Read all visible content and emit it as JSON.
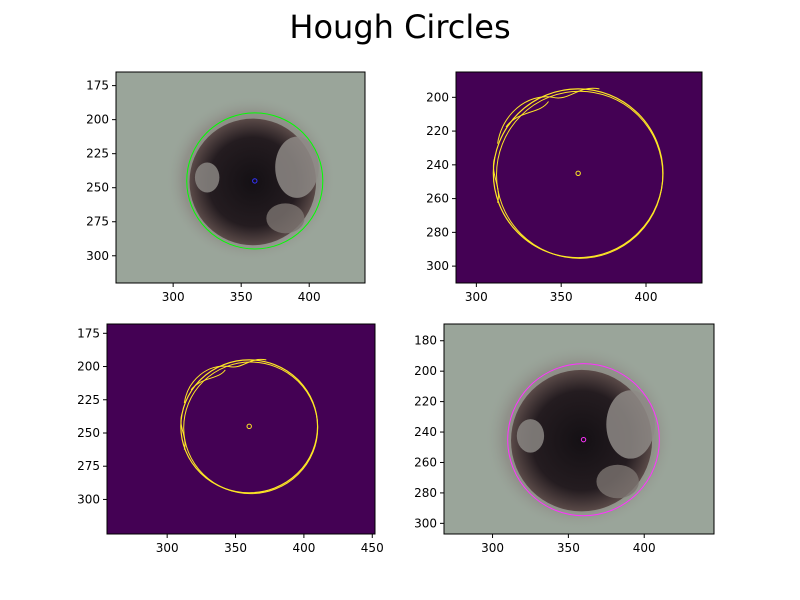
{
  "figure": {
    "title": "Hough Circles",
    "colors": {
      "background": "#ffffff",
      "edge_bg": "#440154",
      "edge_fg": "#fde725",
      "wall": "#9aa59a",
      "hole_dark": "#141014",
      "hole_rim": "#5a4a48",
      "circle_green": "#00ff00",
      "circle_magenta": "#ff33ff",
      "center_blue": "#3333ff"
    }
  },
  "chart_data": [
    {
      "type": "image",
      "panel": "top-left",
      "content": "photo",
      "title": "",
      "xlabel": "",
      "ylabel": "",
      "xlim": [
        258,
        441
      ],
      "ylim": [
        320,
        165
      ],
      "xticks": [
        300,
        350,
        400
      ],
      "yticks": [
        175,
        200,
        225,
        250,
        275,
        300
      ],
      "circle": {
        "cx": 360,
        "cy": 245,
        "r": 50,
        "color": "#00ff00"
      },
      "center_marker_color": "#3333ff"
    },
    {
      "type": "image",
      "panel": "top-right",
      "content": "edges",
      "title": "",
      "xlabel": "",
      "ylabel": "",
      "xlim": [
        288,
        433
      ],
      "ylim": [
        310,
        185
      ],
      "xticks": [
        300,
        350,
        400
      ],
      "yticks": [
        200,
        220,
        240,
        260,
        280,
        300
      ],
      "circle": {
        "cx": 360,
        "cy": 245,
        "r": 50,
        "color": "#fde725"
      },
      "center_marker_color": "#fde725"
    },
    {
      "type": "image",
      "panel": "bottom-left",
      "content": "edges",
      "title": "",
      "xlabel": "",
      "ylabel": "",
      "xlim": [
        256,
        452
      ],
      "ylim": [
        326,
        168
      ],
      "xticks": [
        300,
        350,
        400,
        450
      ],
      "yticks": [
        175,
        200,
        225,
        250,
        275,
        300
      ],
      "circle": {
        "cx": 360,
        "cy": 245,
        "r": 50,
        "color": "#fde725"
      },
      "center_marker_color": "#fde725"
    },
    {
      "type": "image",
      "panel": "bottom-right",
      "content": "photo",
      "title": "",
      "xlabel": "",
      "ylabel": "",
      "xlim": [
        268,
        446
      ],
      "ylim": [
        307,
        169
      ],
      "xticks": [
        300,
        350,
        400
      ],
      "yticks": [
        180,
        200,
        220,
        240,
        260,
        280,
        300
      ],
      "circle": {
        "cx": 360,
        "cy": 245,
        "r": 50,
        "color": "#ff33ff"
      },
      "center_marker_color": "#ff33ff"
    }
  ]
}
